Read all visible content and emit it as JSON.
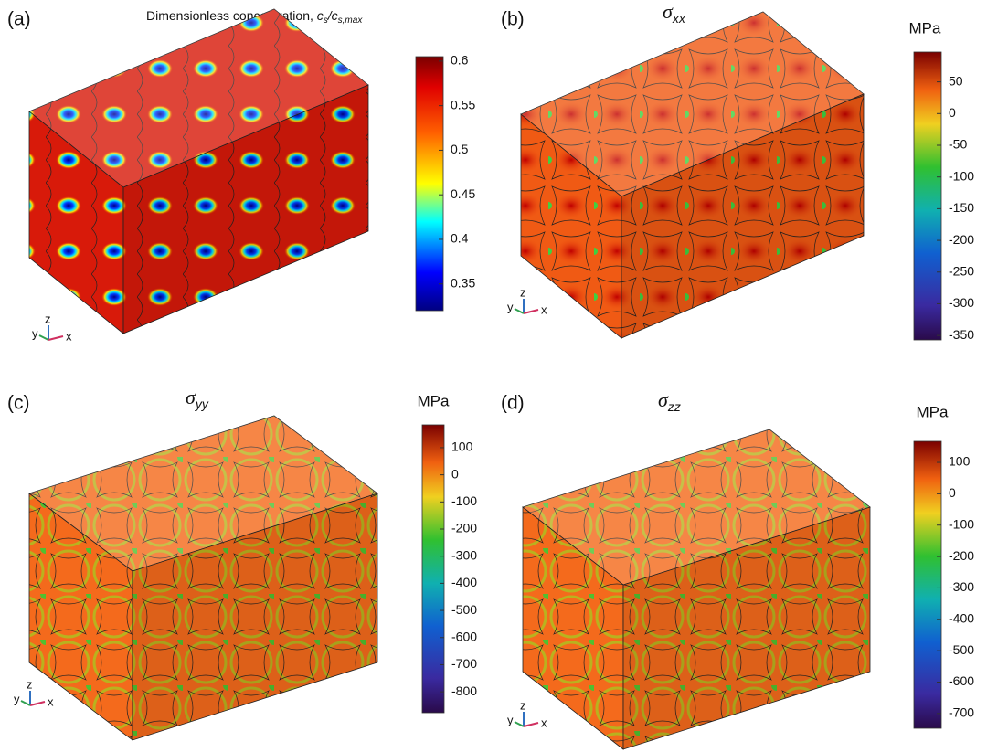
{
  "panels": [
    {
      "label": "(a)",
      "title": {
        "main": "Dimensionless concentration, ",
        "sym1": "c",
        "sub1": "s",
        "sym2": "/c",
        "sub2": "s,max"
      },
      "colorbar": {
        "lim": [
          0.32,
          0.605
        ],
        "ticks": [
          0.6,
          0.55,
          0.5,
          0.45,
          0.4,
          0.35
        ]
      },
      "triad": [
        "y",
        "z",
        "x"
      ]
    },
    {
      "label": "(b)",
      "title": {
        "sym": "σ",
        "sub": "xx"
      },
      "colorbar": {
        "unit": "MPa",
        "lim": [
          -357,
          97
        ],
        "ticks": [
          50,
          0,
          -50,
          -100,
          -150,
          -200,
          -250,
          -300,
          -350
        ]
      },
      "triad": [
        "y",
        "z",
        "x"
      ]
    },
    {
      "label": "(c)",
      "title": {
        "sym": "σ",
        "sub": "yy"
      },
      "colorbar": {
        "unit": "MPa",
        "lim": [
          -877,
          184
        ],
        "ticks": [
          100,
          0,
          -100,
          -200,
          -300,
          -400,
          -500,
          -600,
          -700,
          -800
        ]
      },
      "triad": [
        "y",
        "z",
        "x"
      ]
    },
    {
      "label": "(d)",
      "title": {
        "sym": "σ",
        "sub": "zz"
      },
      "colorbar": {
        "unit": "MPa",
        "lim": [
          -747,
          167
        ],
        "ticks": [
          100,
          0,
          -100,
          -200,
          -300,
          -400,
          -500,
          -600,
          -700
        ]
      },
      "triad": [
        "y",
        "z",
        "x"
      ]
    }
  ]
}
